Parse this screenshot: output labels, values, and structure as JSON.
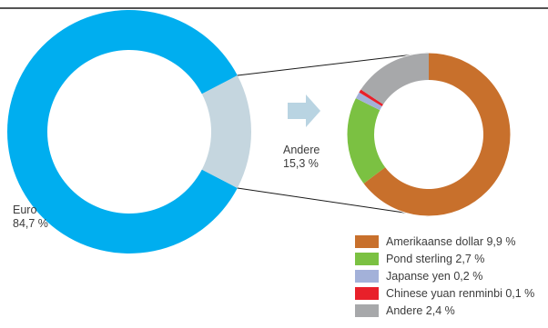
{
  "chart_data": [
    {
      "type": "pie",
      "donut": true,
      "categories": [
        "Euro",
        "Andere"
      ],
      "values": [
        84.7,
        15.3
      ],
      "labels": [
        {
          "name": "Euro",
          "value": "84,7 %"
        },
        {
          "name": "Andere",
          "value": "15,3 %"
        }
      ],
      "colors": [
        "#00aeef",
        "#c5d6df"
      ]
    },
    {
      "type": "pie",
      "donut": true,
      "categories": [
        "Amerikaanse dollar",
        "Pond sterling",
        "Japanse yen",
        "Chinese yuan renminbi",
        "Andere"
      ],
      "values": [
        9.9,
        2.7,
        0.2,
        0.1,
        2.4
      ],
      "legend": [
        "Amerikaanse dollar 9,9 %",
        "Pond sterling 2,7 %",
        "Japanse yen 0,2 %",
        "Chinese yuan renminbi 0,1 %",
        "Andere 2,4 %"
      ],
      "colors": [
        "#c8702c",
        "#7bc142",
        "#a3b1d9",
        "#e8202a",
        "#a7a8aa"
      ],
      "legend_position": "bottom-right"
    }
  ],
  "colors": {
    "top_rule": "#1a1a1a",
    "connector": "#1a1a1a",
    "arrow": "#b9d4e2",
    "text": "#3c3c3c"
  },
  "arrow_icon": "right-arrow-icon"
}
